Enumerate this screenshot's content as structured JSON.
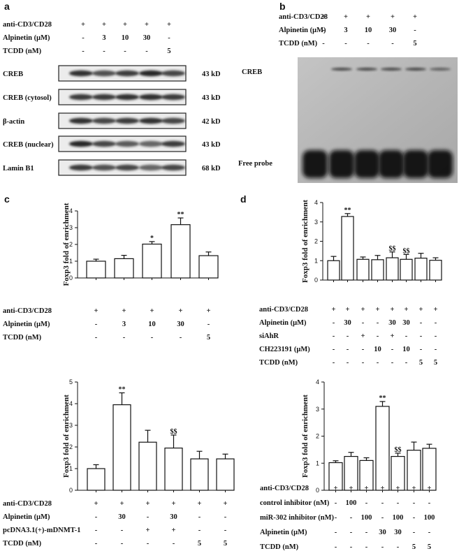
{
  "panel_a": {
    "letter": "a",
    "treatments": [
      {
        "label": "anti-CD3/CD28",
        "values": [
          "+",
          "+",
          "+",
          "+",
          "+"
        ]
      },
      {
        "label": "Alpinetin (μM)",
        "values": [
          "-",
          "3",
          "10",
          "30",
          "-"
        ]
      },
      {
        "label": "TCDD (nM)",
        "values": [
          "-",
          "-",
          "-",
          "-",
          "5"
        ]
      }
    ],
    "blots": [
      {
        "label": "CREB",
        "size": "43 kD"
      },
      {
        "label": "CREB (cytosol)",
        "size": "43 kD"
      },
      {
        "label": "β-actin",
        "size": "42 kD"
      },
      {
        "label": "CREB (nuclear)",
        "size": "43 kD"
      },
      {
        "label": "Lamin B1",
        "size": "68 kD"
      }
    ]
  },
  "panel_b": {
    "letter": "b",
    "treatments": [
      {
        "label": "anti-CD3/CD28",
        "values": [
          "+",
          "+",
          "+",
          "+",
          "+"
        ]
      },
      {
        "label": "Alpinetin (μM)",
        "values": [
          "-",
          "3",
          "10",
          "30",
          "-"
        ]
      },
      {
        "label": "TCDD (nM)",
        "values": [
          "-",
          "-",
          "-",
          "-",
          "5"
        ]
      }
    ],
    "band_label": "CREB",
    "probe_label": "Free probe"
  },
  "chart_data": [
    {
      "id": "c1",
      "type": "bar",
      "letter": "c",
      "ylabel": "Foxp3 fold of enrichment",
      "ylim": [
        0,
        4
      ],
      "yticks": [
        0,
        1,
        2,
        3,
        4
      ],
      "values": [
        1.0,
        1.15,
        2.02,
        3.18,
        1.33
      ],
      "errors": [
        0.12,
        0.2,
        0.15,
        0.4,
        0.22
      ],
      "annotations": [
        "",
        "",
        "*",
        "**",
        ""
      ],
      "treatments": [
        {
          "label": "anti-CD3/CD28",
          "values": [
            "+",
            "+",
            "+",
            "+",
            "+"
          ]
        },
        {
          "label": "Alpinetin (μM)",
          "values": [
            "-",
            "3",
            "10",
            "30",
            "-"
          ]
        },
        {
          "label": "TCDD (nM)",
          "values": [
            "-",
            "-",
            "-",
            "-",
            "5"
          ]
        }
      ]
    },
    {
      "id": "d1",
      "type": "bar",
      "letter": "d",
      "ylabel": "Foxp3 fold of enrichment",
      "ylim": [
        0,
        4
      ],
      "yticks": [
        0,
        1,
        2,
        3,
        4
      ],
      "values": [
        1.0,
        3.28,
        1.07,
        1.05,
        1.15,
        1.07,
        1.13,
        1.02
      ],
      "errors": [
        0.22,
        0.15,
        0.12,
        0.22,
        0.3,
        0.25,
        0.25,
        0.13
      ],
      "annotations": [
        "",
        "**",
        "",
        "",
        "$$",
        "$$",
        "",
        ""
      ],
      "treatments": [
        {
          "label": "anti-CD3/CD28",
          "values": [
            "+",
            "+",
            "+",
            "+",
            "+",
            "+",
            "+",
            "+"
          ]
        },
        {
          "label": "Alpinetin (μM)",
          "values": [
            "-",
            "30",
            "-",
            "-",
            "30",
            "30",
            "-",
            "-"
          ]
        },
        {
          "label": "siAhR",
          "values": [
            "-",
            "-",
            "+",
            "-",
            "+",
            "-",
            "-",
            "-"
          ]
        },
        {
          "label": "CH223191 (μM)",
          "values": [
            "-",
            "-",
            "-",
            "10",
            "-",
            "10",
            "-",
            "-"
          ]
        },
        {
          "label": "TCDD (nM)",
          "values": [
            "-",
            "-",
            "-",
            "-",
            "-",
            "-",
            "5",
            "5"
          ]
        }
      ]
    },
    {
      "id": "c2",
      "type": "bar",
      "letter": "",
      "ylabel": "Foxp3 fold of enrichment",
      "ylim": [
        0,
        5
      ],
      "yticks": [
        0,
        1,
        2,
        3,
        4,
        5
      ],
      "values": [
        1.0,
        3.95,
        2.22,
        1.95,
        1.45,
        1.45
      ],
      "errors": [
        0.18,
        0.55,
        0.55,
        0.6,
        0.35,
        0.22
      ],
      "annotations": [
        "",
        "**",
        "",
        "$$",
        "",
        ""
      ],
      "treatments": [
        {
          "label": "anti-CD3/CD28",
          "values": [
            "+",
            "+",
            "+",
            "+",
            "+",
            "+"
          ]
        },
        {
          "label": "Alpinetin (μM)",
          "values": [
            "-",
            "30",
            "-",
            "30",
            "-",
            "-"
          ]
        },
        {
          "label": "pcDNA3.1(+)-mDNMT-1",
          "values": [
            "-",
            "-",
            "+",
            "+",
            "-",
            "-"
          ]
        },
        {
          "label": "TCDD (nM)",
          "values": [
            "-",
            "-",
            "-",
            "-",
            "5",
            "5"
          ]
        }
      ]
    },
    {
      "id": "d2",
      "type": "bar",
      "letter": "",
      "ylabel": "Foxp3 fold of enrichment",
      "ylim": [
        0,
        4
      ],
      "yticks": [
        0,
        1,
        2,
        3,
        4
      ],
      "values": [
        1.02,
        1.25,
        1.1,
        3.1,
        1.25,
        1.48,
        1.55
      ],
      "errors": [
        0.07,
        0.15,
        0.1,
        0.18,
        0.12,
        0.3,
        0.15
      ],
      "annotations": [
        "",
        "",
        "",
        "**",
        "$$",
        "",
        ""
      ],
      "treatments": [
        {
          "label": "anti-CD3/CD28",
          "values": [
            "+",
            "+",
            "+",
            "+",
            "+",
            "+",
            "+"
          ]
        },
        {
          "label": "control inhibitor (nM)",
          "values": [
            "-",
            "100",
            "-",
            "-",
            "-",
            "-",
            "-"
          ]
        },
        {
          "label": "miR-302 inhibitor (nM)",
          "values": [
            "-",
            "-",
            "100",
            "-",
            "100",
            "-",
            "100"
          ]
        },
        {
          "label": "Alpinetin (μM)",
          "values": [
            "-",
            "-",
            "-",
            "30",
            "30",
            "-",
            "-"
          ]
        },
        {
          "label": "TCDD (nM)",
          "values": [
            "-",
            "-",
            "-",
            "-",
            "-",
            "5",
            "5"
          ]
        }
      ]
    }
  ]
}
